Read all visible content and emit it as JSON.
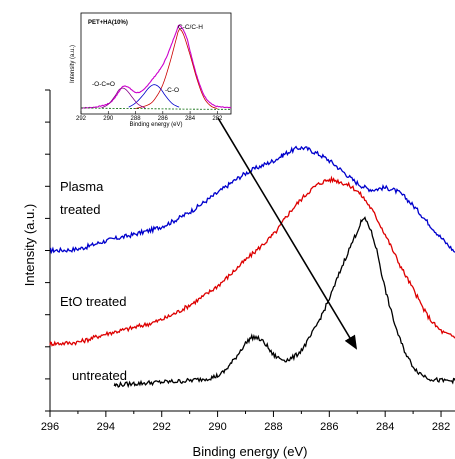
{
  "chart_data": {
    "type": "line",
    "title": "",
    "xlabel": "Binding energy (eV)",
    "ylabel": "Intensity (a.u.)",
    "xlim": [
      296,
      281.5
    ],
    "x_reversed": true,
    "ylim": [
      0,
      10
    ],
    "x_ticks": [
      296,
      294,
      292,
      290,
      288,
      286,
      284,
      282
    ],
    "grid": false,
    "legend": "none",
    "series": [
      {
        "name": "Plasma treated",
        "color": "#0000cc",
        "x": [
          296,
          295,
          294,
          293,
          292,
          291,
          290,
          289,
          288,
          287.5,
          287,
          286.5,
          286,
          285.5,
          285,
          284.5,
          284,
          283.5,
          283,
          282.5,
          282,
          281.5
        ],
        "y": [
          5.0,
          5.05,
          5.3,
          5.5,
          5.75,
          6.2,
          6.8,
          7.4,
          7.8,
          8.05,
          8.2,
          8.05,
          7.8,
          7.45,
          7.1,
          6.9,
          6.95,
          6.8,
          6.4,
          5.9,
          5.4,
          4.95
        ]
      },
      {
        "name": "EtO treated",
        "color": "#dd0000",
        "x": [
          296,
          295,
          294,
          293,
          292,
          291,
          290,
          289,
          288,
          287.5,
          287,
          286.5,
          286,
          285.5,
          285,
          284.5,
          284,
          283.5,
          283,
          282.5,
          282,
          281.5
        ],
        "y": [
          2.1,
          2.15,
          2.4,
          2.6,
          2.85,
          3.3,
          3.9,
          4.7,
          5.5,
          6.1,
          6.6,
          7.0,
          7.2,
          7.1,
          6.85,
          6.3,
          5.5,
          4.6,
          3.8,
          3.0,
          2.5,
          2.3
        ]
      },
      {
        "name": "untreated",
        "color": "#000000",
        "x": [
          293.7,
          293,
          292,
          291,
          290,
          289.5,
          289,
          288.7,
          288.3,
          288,
          287.5,
          287,
          286.5,
          286,
          285.5,
          285,
          284.8,
          284.6,
          284.3,
          284,
          283.5,
          283,
          282.5,
          282,
          281.5
        ],
        "y": [
          0.8,
          0.85,
          0.9,
          0.95,
          1.1,
          1.5,
          2.1,
          2.3,
          2.1,
          1.75,
          1.6,
          1.9,
          2.6,
          3.5,
          4.6,
          5.6,
          5.95,
          5.8,
          5.0,
          3.8,
          2.3,
          1.4,
          1.05,
          0.95,
          0.95
        ]
      }
    ],
    "inset": {
      "title": "PET+HA(10%)",
      "xlabel": "Binding energy (eV)",
      "ylabel": "Intensity (a.u.)",
      "xlim": [
        292,
        281
      ],
      "x_ticks": [
        292,
        290,
        288,
        286,
        284,
        282
      ],
      "peak_labels": [
        "-O-C=O",
        "-C-O",
        "C-C/C-H"
      ],
      "series": [
        {
          "name": "envelope",
          "color": "#cc00cc",
          "x": [
            292,
            291,
            290,
            289.5,
            289,
            288.7,
            288.3,
            288,
            287.5,
            287,
            286.5,
            286,
            285.5,
            285,
            284.8,
            284.5,
            284.2,
            284,
            283.5,
            283,
            282.5,
            282,
            281
          ],
          "y": [
            0.15,
            0.2,
            0.45,
            0.9,
            1.6,
            1.7,
            1.45,
            1.25,
            1.35,
            1.9,
            2.5,
            3.2,
            4.3,
            5.6,
            6.0,
            5.7,
            5.0,
            4.2,
            2.4,
            1.1,
            0.5,
            0.25,
            0.15
          ]
        },
        {
          "name": "C-C/C-H",
          "color": "#cc0000",
          "x": [
            288,
            287,
            286.5,
            286,
            285.5,
            285,
            284.8,
            284.5,
            284,
            283.5,
            283,
            282.5,
            282
          ],
          "y": [
            0.1,
            0.4,
            0.9,
            1.8,
            3.3,
            5.1,
            5.7,
            5.4,
            3.9,
            2.2,
            0.9,
            0.3,
            0.1
          ]
        },
        {
          "name": "-C-O",
          "color": "#0000cc",
          "x": [
            288.5,
            288,
            287.5,
            287,
            286.6,
            286.2,
            285.8,
            285.3,
            284.8
          ],
          "y": [
            0.2,
            0.5,
            1.0,
            1.6,
            1.8,
            1.55,
            1.0,
            0.45,
            0.2
          ]
        },
        {
          "name": "-O-C=O",
          "color": "#880088",
          "x": [
            290.5,
            290,
            289.5,
            289.2,
            288.9,
            288.6,
            288.2,
            287.8,
            287.3
          ],
          "y": [
            0.15,
            0.4,
            1.0,
            1.45,
            1.55,
            1.35,
            0.85,
            0.4,
            0.15
          ]
        },
        {
          "name": "baseline",
          "color": "#006600",
          "x": [
            292,
            290,
            288,
            286,
            284,
            282,
            281
          ],
          "y": [
            0.15,
            0.12,
            0.1,
            0.08,
            0.06,
            0.05,
            0.05
          ]
        }
      ]
    }
  }
}
